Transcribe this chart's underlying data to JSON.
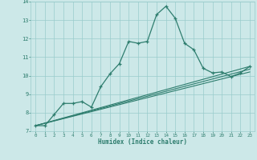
{
  "xlabel": "Humidex (Indice chaleur)",
  "ylabel": "",
  "xlim": [
    -0.5,
    23.5
  ],
  "ylim": [
    7,
    14
  ],
  "yticks": [
    7,
    8,
    9,
    10,
    11,
    12,
    13,
    14
  ],
  "xticks": [
    0,
    1,
    2,
    3,
    4,
    5,
    6,
    7,
    8,
    9,
    10,
    11,
    12,
    13,
    14,
    15,
    16,
    17,
    18,
    19,
    20,
    21,
    22,
    23
  ],
  "background_color": "#cce8e8",
  "grid_color": "#99cccc",
  "line_color": "#2e7d6e",
  "line1_x": [
    0,
    1,
    2,
    3,
    4,
    5,
    6,
    7,
    8,
    9,
    10,
    11,
    12,
    13,
    14,
    15,
    16,
    17,
    18,
    19,
    20,
    21,
    22,
    23
  ],
  "line1_y": [
    7.3,
    7.3,
    7.9,
    8.5,
    8.5,
    8.6,
    8.3,
    9.4,
    10.1,
    10.65,
    11.85,
    11.75,
    11.85,
    13.3,
    13.75,
    13.1,
    11.75,
    11.4,
    10.4,
    10.15,
    10.2,
    9.95,
    10.15,
    10.5
  ],
  "line2_x": [
    0,
    23
  ],
  "line2_y": [
    7.3,
    10.5
  ],
  "line3_x": [
    0,
    23
  ],
  "line3_y": [
    7.3,
    10.35
  ],
  "line4_x": [
    0,
    23
  ],
  "line4_y": [
    7.3,
    10.2
  ]
}
